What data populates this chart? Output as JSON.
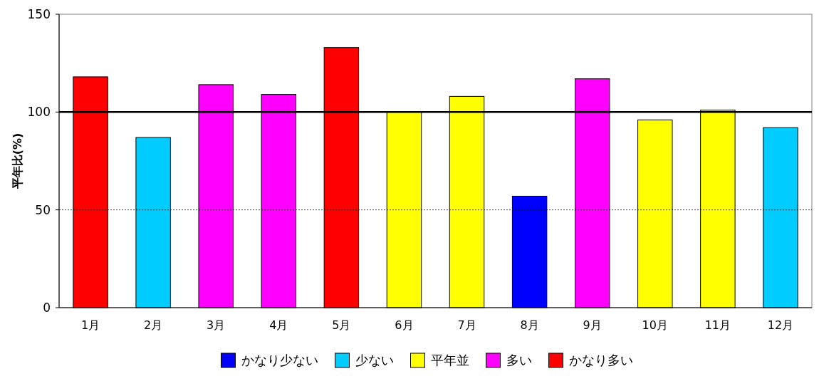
{
  "chart_data": {
    "type": "bar",
    "ylabel": "平年比(%)",
    "categories": [
      "1月",
      "2月",
      "3月",
      "4月",
      "5月",
      "6月",
      "7月",
      "8月",
      "9月",
      "10月",
      "11月",
      "12月"
    ],
    "series": [
      {
        "name": "かなり少ない",
        "color": "#0000ff",
        "values": [
          null,
          null,
          null,
          null,
          null,
          null,
          null,
          57,
          null,
          null,
          null,
          null
        ]
      },
      {
        "name": "少ない",
        "color": "#00ccff",
        "values": [
          null,
          87,
          null,
          null,
          null,
          null,
          null,
          null,
          null,
          null,
          null,
          92
        ]
      },
      {
        "name": "平年並",
        "color": "#ffff00",
        "values": [
          null,
          null,
          null,
          null,
          null,
          100,
          108,
          null,
          null,
          96,
          101,
          null
        ]
      },
      {
        "name": "多い",
        "color": "#ff00ff",
        "values": [
          null,
          null,
          114,
          109,
          null,
          null,
          null,
          null,
          117,
          null,
          null,
          null
        ]
      },
      {
        "name": "かなり多い",
        "color": "#ff0000",
        "values": [
          118,
          null,
          null,
          null,
          133,
          null,
          null,
          null,
          null,
          null,
          null,
          null
        ]
      }
    ],
    "ylim": [
      0,
      150
    ],
    "yticks": [
      0,
      50,
      100,
      150
    ],
    "legend": "bottom",
    "ref_lines": [
      {
        "axis": "y",
        "value": 100,
        "color": "#000000",
        "line_style": "solid"
      },
      {
        "axis": "y",
        "value": 50,
        "color": "#000000",
        "line_style": "dashed"
      }
    ]
  }
}
